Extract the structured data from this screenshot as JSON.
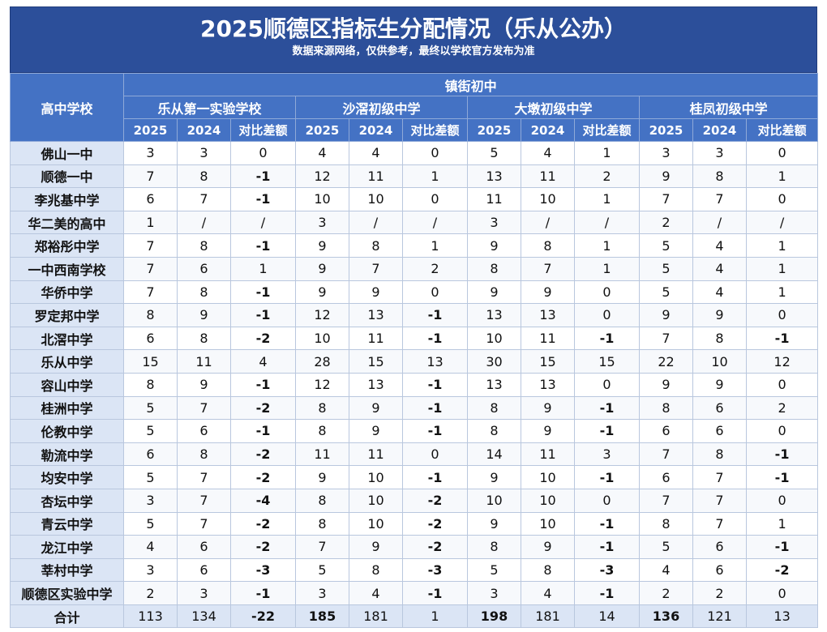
{
  "title": "2025顺德区指标生分配情况（乐从公办）",
  "subtitle": "数据来源网络，仅供参考，最终以学校官方发布为准",
  "header": {
    "school_col": "高中学校",
    "group": "镇街初中",
    "middle_schools": [
      "乐从第一实验学校",
      "沙滘初级中学",
      "大墩初级中学",
      "桂凤初级中学"
    ],
    "sub_cols": [
      "2025",
      "2024",
      "对比差额"
    ]
  },
  "rows": [
    {
      "name": "佛山一中",
      "values": [
        "3",
        "3",
        "0",
        "4",
        "4",
        "0",
        "5",
        "4",
        "1",
        "3",
        "3",
        "0"
      ]
    },
    {
      "name": "顺德一中",
      "values": [
        "7",
        "8",
        "-1",
        "12",
        "11",
        "1",
        "13",
        "11",
        "2",
        "9",
        "8",
        "1"
      ]
    },
    {
      "name": "李兆基中学",
      "values": [
        "6",
        "7",
        "-1",
        "10",
        "10",
        "0",
        "11",
        "10",
        "1",
        "7",
        "7",
        "0"
      ]
    },
    {
      "name": "华二美的高中",
      "values": [
        "1",
        "/",
        "/",
        "3",
        "/",
        "/",
        "3",
        "/",
        "/",
        "2",
        "/",
        "/"
      ]
    },
    {
      "name": "郑裕彤中学",
      "values": [
        "7",
        "8",
        "-1",
        "9",
        "8",
        "1",
        "9",
        "8",
        "1",
        "5",
        "4",
        "1"
      ]
    },
    {
      "name": "一中西南学校",
      "values": [
        "7",
        "6",
        "1",
        "9",
        "7",
        "2",
        "8",
        "7",
        "1",
        "5",
        "4",
        "1"
      ]
    },
    {
      "name": "华侨中学",
      "values": [
        "7",
        "8",
        "-1",
        "9",
        "9",
        "0",
        "9",
        "9",
        "0",
        "5",
        "4",
        "1"
      ]
    },
    {
      "name": "罗定邦中学",
      "values": [
        "8",
        "9",
        "-1",
        "12",
        "13",
        "-1",
        "13",
        "13",
        "0",
        "9",
        "9",
        "0"
      ]
    },
    {
      "name": "北滘中学",
      "values": [
        "6",
        "8",
        "-2",
        "10",
        "11",
        "-1",
        "10",
        "11",
        "-1",
        "7",
        "8",
        "-1"
      ]
    },
    {
      "name": "乐从中学",
      "values": [
        "15",
        "11",
        "4",
        "28",
        "15",
        "13",
        "30",
        "15",
        "15",
        "22",
        "10",
        "12"
      ]
    },
    {
      "name": "容山中学",
      "values": [
        "8",
        "9",
        "-1",
        "12",
        "13",
        "-1",
        "13",
        "13",
        "0",
        "9",
        "9",
        "0"
      ]
    },
    {
      "name": "桂洲中学",
      "values": [
        "5",
        "7",
        "-2",
        "8",
        "9",
        "-1",
        "8",
        "9",
        "-1",
        "8",
        "6",
        "2"
      ]
    },
    {
      "name": "伦教中学",
      "values": [
        "5",
        "6",
        "-1",
        "8",
        "9",
        "-1",
        "8",
        "9",
        "-1",
        "6",
        "6",
        "0"
      ]
    },
    {
      "name": "勒流中学",
      "values": [
        "6",
        "8",
        "-2",
        "11",
        "11",
        "0",
        "14",
        "11",
        "3",
        "7",
        "8",
        "-1"
      ]
    },
    {
      "name": "均安中学",
      "values": [
        "5",
        "7",
        "-2",
        "9",
        "10",
        "-1",
        "9",
        "10",
        "-1",
        "6",
        "7",
        "-1"
      ]
    },
    {
      "name": "杏坛中学",
      "values": [
        "3",
        "7",
        "-4",
        "8",
        "10",
        "-2",
        "10",
        "10",
        "0",
        "7",
        "7",
        "0"
      ]
    },
    {
      "name": "青云中学",
      "values": [
        "5",
        "7",
        "-2",
        "8",
        "10",
        "-2",
        "9",
        "10",
        "-1",
        "8",
        "7",
        "1"
      ]
    },
    {
      "name": "龙江中学",
      "values": [
        "4",
        "6",
        "-2",
        "7",
        "9",
        "-2",
        "8",
        "9",
        "-1",
        "5",
        "6",
        "-1"
      ]
    },
    {
      "name": "莘村中学",
      "values": [
        "3",
        "6",
        "-3",
        "5",
        "8",
        "-3",
        "5",
        "8",
        "-3",
        "4",
        "6",
        "-2"
      ]
    },
    {
      "name": "顺德区实验中学",
      "values": [
        "2",
        "3",
        "-1",
        "3",
        "4",
        "-1",
        "3",
        "4",
        "-1",
        "2",
        "2",
        "0"
      ]
    }
  ],
  "total": {
    "name": "合计",
    "values": [
      "113",
      "134",
      "-22",
      "185",
      "181",
      "1",
      "198",
      "181",
      "14",
      "136",
      "121",
      "13"
    ]
  }
}
